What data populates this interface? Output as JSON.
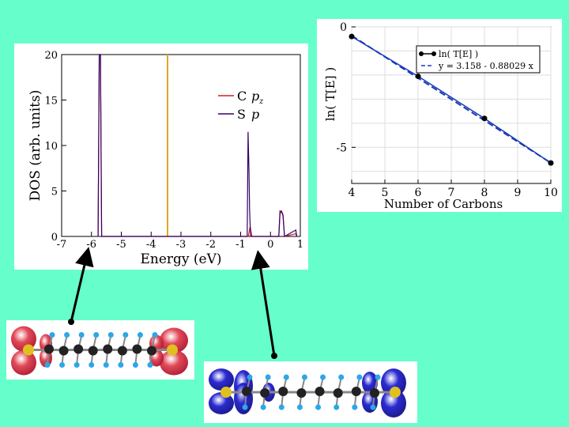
{
  "colors": {
    "background": "#66ffcc",
    "c_pz": "#cc2222",
    "s_p": "#330066",
    "fermi": "#ddaa22",
    "fit_line": "#1a3ab8",
    "data_line": "#000000",
    "lobe_red": "#e04050",
    "lobe_blue": "#2020d0",
    "atom_c": "#222222",
    "atom_h": "#2aa8e8",
    "atom_s": "#e0c020"
  },
  "chart_data": [
    {
      "type": "line",
      "name": "dos",
      "xlabel": "Energy (eV)",
      "ylabel": "DOS (arb. units)",
      "xlim": [
        -7,
        1
      ],
      "ylim": [
        0,
        20
      ],
      "xticks": [
        -7,
        -6,
        -5,
        -4,
        -3,
        -2,
        -1,
        0,
        1
      ],
      "yticks": [
        0,
        5,
        10,
        15,
        20
      ],
      "fermi_level": -3.45,
      "legend": [
        "C pz",
        "S p"
      ],
      "legend_position": "right",
      "series": [
        {
          "name": "C pz",
          "x": [
            -5.78,
            -5.74,
            -5.7,
            -5.66,
            -0.74,
            -0.72,
            -0.7,
            -0.68,
            -0.66,
            -0.64,
            -0.62,
            0.28,
            0.32,
            0.37,
            0.42,
            0.47,
            0.85,
            0.88
          ],
          "y": [
            0,
            20,
            20,
            0,
            0,
            0.4,
            0.8,
            1.1,
            0.7,
            0.3,
            0,
            0,
            2.5,
            2.8,
            2.4,
            0,
            0.3,
            0
          ]
        },
        {
          "name": "S p",
          "x": [
            -5.78,
            -5.74,
            -5.7,
            -5.66,
            -0.78,
            -0.75,
            -0.72,
            -0.7,
            -0.68,
            -0.66,
            0.28,
            0.32,
            0.37,
            0.42,
            0.47,
            0.85,
            0.88
          ],
          "y": [
            0,
            20,
            20,
            0,
            0,
            11.5,
            7,
            3,
            1,
            0,
            0,
            2.8,
            2.7,
            2.3,
            0,
            0.7,
            0
          ]
        }
      ]
    },
    {
      "type": "line",
      "name": "ln_transmission",
      "xlabel": "Number of Carbons",
      "ylabel": "ln( T[E] )",
      "xlim": [
        4,
        10
      ],
      "ylim": [
        -6.5,
        0
      ],
      "xticks": [
        4,
        5,
        6,
        7,
        8,
        9,
        10
      ],
      "yticks": [
        0,
        -5
      ],
      "legend_position": "top-right",
      "series": [
        {
          "name": "ln( T[E] )",
          "x": [
            4,
            6,
            8,
            10
          ],
          "y": [
            -0.4,
            -2.05,
            -3.8,
            -5.65
          ]
        },
        {
          "name": "y = 3.158 - 0.88029 x",
          "fit": {
            "intercept": 3.158,
            "slope": -0.88029
          }
        }
      ]
    }
  ],
  "labels": {
    "dos_legend_c": "C",
    "dos_legend_c_sub": "p",
    "dos_legend_c_subz": "z",
    "dos_legend_s": "S",
    "dos_legend_s_sub": "p",
    "lnt_legend_data": "ln( T[E] )",
    "lnt_legend_fit": "y = 3.158 - 0.88029 x"
  },
  "orbitals": {
    "left_color": "red",
    "right_color": "blue"
  }
}
